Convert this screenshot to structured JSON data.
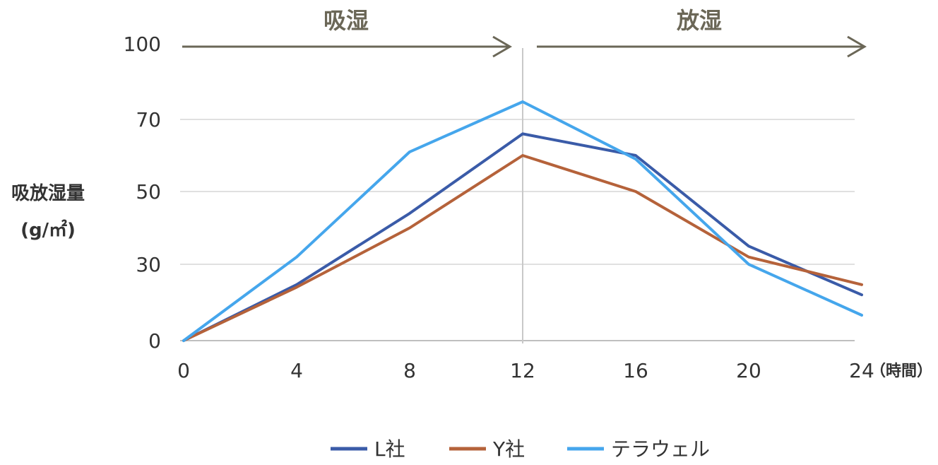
{
  "chart_data": {
    "type": "line",
    "ylabel_line1": "吸放湿量",
    "ylabel_line2": "(g/㎡)",
    "xunit": "（時間）",
    "x": [
      0,
      4,
      8,
      12,
      16,
      20,
      24
    ],
    "yticks": [
      "0",
      "30",
      "50",
      "70",
      "100"
    ],
    "xticks": [
      "0",
      "4",
      "8",
      "12",
      "16",
      "20",
      "24"
    ],
    "phases": {
      "absorb": "吸湿",
      "release": "放湿"
    },
    "grid": true,
    "legend_position": "bottom",
    "series": [
      {
        "name": "L社",
        "color": "#3a5ba8",
        "values": [
          0,
          22,
          44,
          66,
          60,
          35,
          18
        ]
      },
      {
        "name": "Y社",
        "color": "#b5623a",
        "values": [
          0,
          21,
          40,
          60,
          50,
          32,
          22
        ]
      },
      {
        "name": "テラウェル",
        "color": "#45a6ec",
        "values": [
          0,
          32,
          61,
          77,
          59,
          30,
          10
        ]
      }
    ]
  }
}
